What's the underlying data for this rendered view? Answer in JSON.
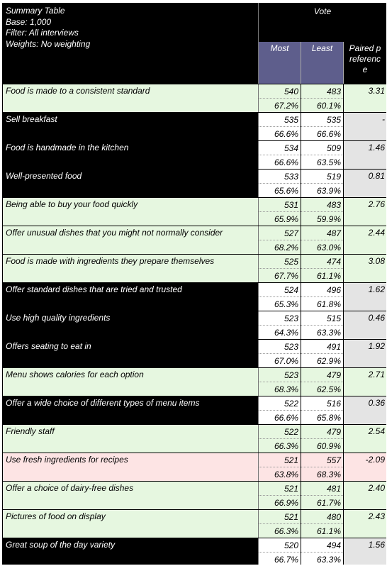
{
  "header": {
    "title": "Summary Table",
    "base": "Base: 1,000",
    "filter": "Filter: All interviews",
    "weights": "Weights: No weighting",
    "group_label": "Vote",
    "col_most": "Most",
    "col_least": "Least",
    "col_paired": "Paired preference"
  },
  "colors": {
    "significant_positive": "#e6f7e0",
    "significant_negative": "#fde4e4",
    "not_significant": "#000000",
    "header_column": "#5e5e8c"
  },
  "rows": [
    {
      "label": "Food is made to a consistent standard",
      "most": "540",
      "least": "483",
      "most_pct": "67.2%",
      "least_pct": "60.1%",
      "paired": "3.31",
      "shade": "green"
    },
    {
      "label": "Sell breakfast",
      "most": "535",
      "least": "535",
      "most_pct": "66.6%",
      "least_pct": "66.6%",
      "paired": "-",
      "shade": "black"
    },
    {
      "label": "Food is handmade in the kitchen",
      "most": "534",
      "least": "509",
      "most_pct": "66.6%",
      "least_pct": "63.5%",
      "paired": "1.46",
      "shade": "black"
    },
    {
      "label": "Well-presented food",
      "most": "533",
      "least": "519",
      "most_pct": "65.6%",
      "least_pct": "63.9%",
      "paired": "0.81",
      "shade": "black"
    },
    {
      "label": "Being able to buy your food quickly",
      "most": "531",
      "least": "483",
      "most_pct": "65.9%",
      "least_pct": "59.9%",
      "paired": "2.76",
      "shade": "green"
    },
    {
      "label": "Offer unusual dishes that you might not normally consider",
      "most": "527",
      "least": "487",
      "most_pct": "68.2%",
      "least_pct": "63.0%",
      "paired": "2.44",
      "shade": "green"
    },
    {
      "label": "Food is made with ingredients they prepare themselves",
      "most": "525",
      "least": "474",
      "most_pct": "67.7%",
      "least_pct": "61.1%",
      "paired": "3.08",
      "shade": "green"
    },
    {
      "label": "Offer standard dishes that are tried and trusted",
      "most": "524",
      "least": "496",
      "most_pct": "65.3%",
      "least_pct": "61.8%",
      "paired": "1.62",
      "shade": "black"
    },
    {
      "label": "Use high quality ingredients",
      "most": "523",
      "least": "515",
      "most_pct": "64.3%",
      "least_pct": "63.3%",
      "paired": "0.46",
      "shade": "black"
    },
    {
      "label": "Offers seating to eat in",
      "most": "523",
      "least": "491",
      "most_pct": "67.0%",
      "least_pct": "62.9%",
      "paired": "1.92",
      "shade": "black"
    },
    {
      "label": "Menu shows calories for each option",
      "most": "523",
      "least": "479",
      "most_pct": "68.3%",
      "least_pct": "62.5%",
      "paired": "2.71",
      "shade": "green"
    },
    {
      "label": "Offer a wide choice of different types of menu items",
      "most": "522",
      "least": "516",
      "most_pct": "66.6%",
      "least_pct": "65.8%",
      "paired": "0.36",
      "shade": "black"
    },
    {
      "label": "Friendly staff",
      "most": "522",
      "least": "479",
      "most_pct": "66.3%",
      "least_pct": "60.9%",
      "paired": "2.54",
      "shade": "green"
    },
    {
      "label": "Use fresh ingredients for recipes",
      "most": "521",
      "least": "557",
      "most_pct": "63.8%",
      "least_pct": "68.3%",
      "paired": "-2.09",
      "shade": "pink"
    },
    {
      "label": "Offer a choice of dairy-free dishes",
      "most": "521",
      "least": "481",
      "most_pct": "66.9%",
      "least_pct": "61.7%",
      "paired": "2.40",
      "shade": "green"
    },
    {
      "label": "Pictures of food on display",
      "most": "521",
      "least": "480",
      "most_pct": "66.3%",
      "least_pct": "61.1%",
      "paired": "2.43",
      "shade": "green"
    },
    {
      "label": "Great soup of the day variety",
      "most": "520",
      "least": "494",
      "most_pct": "66.7%",
      "least_pct": "63.3%",
      "paired": "1.56",
      "shade": "black"
    }
  ]
}
